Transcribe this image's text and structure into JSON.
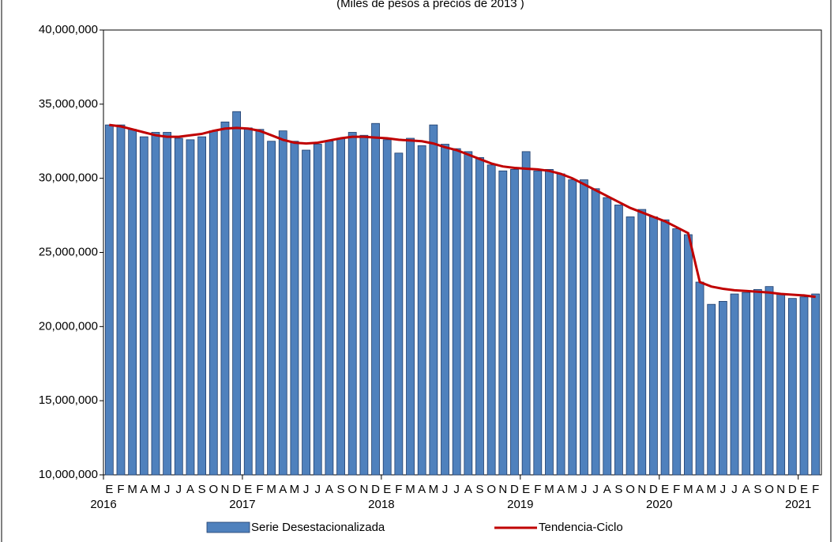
{
  "chart_data": {
    "type": "bar_line",
    "subtitle": "(Miles de pesos a precios de 2013 )",
    "categories": [
      "E",
      "F",
      "M",
      "A",
      "M",
      "J",
      "J",
      "A",
      "S",
      "O",
      "N",
      "D",
      "E",
      "F",
      "M",
      "A",
      "M",
      "J",
      "J",
      "A",
      "S",
      "O",
      "N",
      "D",
      "E",
      "F",
      "M",
      "A",
      "M",
      "J",
      "J",
      "A",
      "S",
      "O",
      "N",
      "D",
      "E",
      "F",
      "M",
      "A",
      "M",
      "J",
      "J",
      "A",
      "S",
      "O",
      "N",
      "D",
      "E",
      "F",
      "M",
      "A",
      "M",
      "J",
      "J",
      "A",
      "S",
      "O",
      "N",
      "D",
      "E",
      "F"
    ],
    "years": [
      "2016",
      null,
      null,
      null,
      null,
      null,
      null,
      null,
      null,
      null,
      null,
      null,
      "2017",
      null,
      null,
      null,
      null,
      null,
      null,
      null,
      null,
      null,
      null,
      null,
      "2018",
      null,
      null,
      null,
      null,
      null,
      null,
      null,
      null,
      null,
      null,
      null,
      "2019",
      null,
      null,
      null,
      null,
      null,
      null,
      null,
      null,
      null,
      null,
      null,
      "2020",
      null,
      null,
      null,
      null,
      null,
      null,
      null,
      null,
      null,
      null,
      null,
      "2021",
      null
    ],
    "series": [
      {
        "name": "Serie Desestacionalizada",
        "color": "#4f81bd",
        "values": [
          33600000,
          33600000,
          33300000,
          32800000,
          33100000,
          33100000,
          32700000,
          32600000,
          32800000,
          33200000,
          33800000,
          34500000,
          33400000,
          33300000,
          32500000,
          33200000,
          32500000,
          31900000,
          32300000,
          32500000,
          32700000,
          33100000,
          32900000,
          33700000,
          32600000,
          31700000,
          32700000,
          32200000,
          33600000,
          32300000,
          32000000,
          31800000,
          31400000,
          30900000,
          30500000,
          30600000,
          31800000,
          30500000,
          30600000,
          30300000,
          29900000,
          29900000,
          29300000,
          28700000,
          28200000,
          27400000,
          27900000,
          27400000,
          27200000,
          26600000,
          26200000,
          23000000,
          21500000,
          21700000,
          22200000,
          22300000,
          22500000,
          22700000,
          22200000,
          21900000,
          22000000,
          22200000
        ]
      },
      {
        "name": "Tendencia-Ciclo",
        "color": "#c00000",
        "values": [
          33600000,
          33500000,
          33300000,
          33100000,
          32900000,
          32800000,
          32800000,
          32900000,
          33000000,
          33200000,
          33350000,
          33400000,
          33350000,
          33200000,
          32900000,
          32600000,
          32400000,
          32350000,
          32400000,
          32550000,
          32700000,
          32800000,
          32800000,
          32750000,
          32700000,
          32600000,
          32550000,
          32500000,
          32350000,
          32100000,
          31900000,
          31600000,
          31300000,
          31000000,
          30800000,
          30700000,
          30650000,
          30600000,
          30500000,
          30300000,
          30000000,
          29600000,
          29200000,
          28800000,
          28400000,
          28000000,
          27700000,
          27400000,
          27100000,
          26700000,
          26300000,
          23000000,
          22700000,
          22550000,
          22450000,
          22400000,
          22350000,
          22300000,
          22200000,
          22150000,
          22100000,
          22000000
        ]
      }
    ],
    "ylim": [
      10000000,
      40000000
    ],
    "yticks": [
      {
        "value": 10000000,
        "label": "10,000,000"
      },
      {
        "value": 15000000,
        "label": "15,000,000"
      },
      {
        "value": 20000000,
        "label": "20,000,000"
      },
      {
        "value": 25000000,
        "label": "25,000,000"
      },
      {
        "value": 30000000,
        "label": "30,000,000"
      },
      {
        "value": 35000000,
        "label": "35,000,000"
      },
      {
        "value": 40000000,
        "label": "40,000,000"
      }
    ],
    "grid": false,
    "legend": "bottom"
  }
}
